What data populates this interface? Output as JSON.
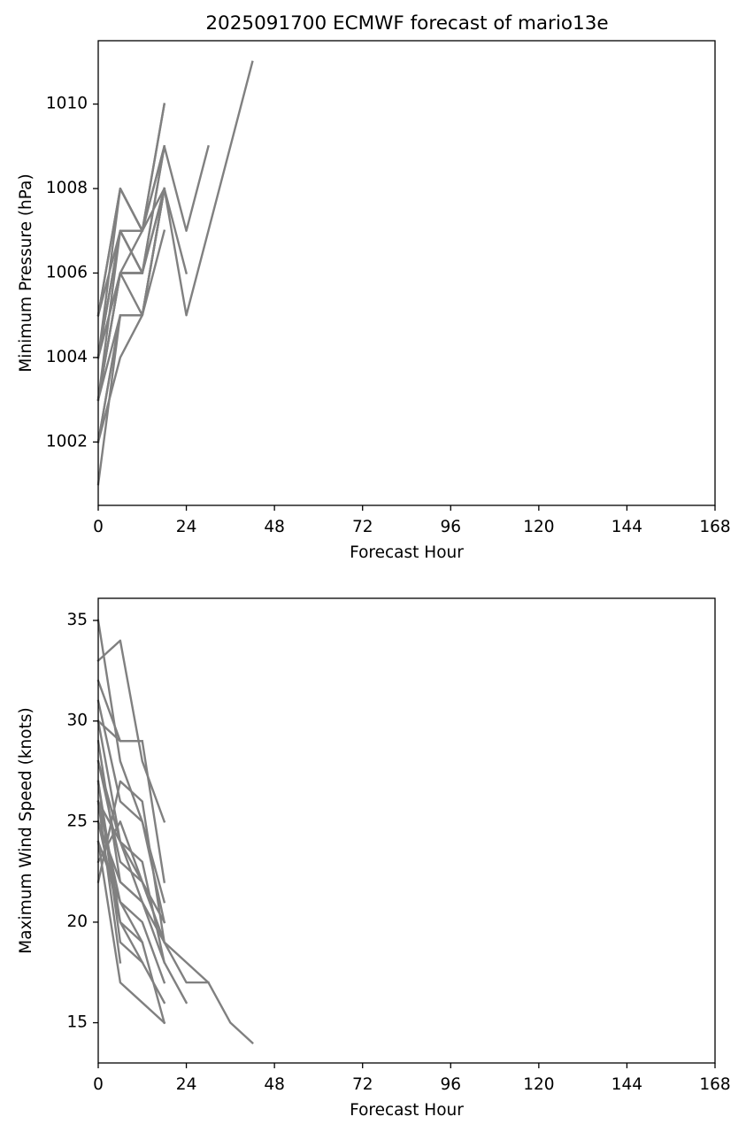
{
  "figure": {
    "title": "2025091700 ECMWF forecast of mario13e"
  },
  "chart_data": [
    {
      "type": "line",
      "title": "2025091700 ECMWF forecast of mario13e",
      "xlabel": "Forecast Hour",
      "ylabel": "Minimum Pressure (hPa)",
      "xlim": [
        0,
        168
      ],
      "ylim": [
        1000.5,
        1011.5
      ],
      "xticks": [
        0,
        24,
        48,
        72,
        96,
        120,
        144,
        168
      ],
      "yticks": [
        1002,
        1004,
        1006,
        1008,
        1010
      ],
      "grid": false,
      "legend": "none",
      "line_color": "#808080",
      "series": [
        {
          "x": [
            0,
            6,
            12,
            18,
            24,
            30,
            36,
            42
          ],
          "y": [
            1003,
            1005,
            1005,
            1008,
            1005,
            1007,
            1009,
            1011
          ]
        },
        {
          "x": [
            0,
            6,
            12,
            18,
            24,
            30
          ],
          "y": [
            1004,
            1007,
            1007,
            1009,
            1007,
            1009
          ]
        },
        {
          "x": [
            0,
            6,
            12,
            18,
            24
          ],
          "y": [
            1004,
            1007,
            1006,
            1008,
            1006
          ]
        },
        {
          "x": [
            0,
            6,
            12,
            18
          ],
          "y": [
            1005,
            1008,
            1007,
            1010
          ]
        },
        {
          "x": [
            0,
            6,
            12,
            18
          ],
          "y": [
            1003,
            1006,
            1006,
            1009
          ]
        },
        {
          "x": [
            0,
            6,
            12,
            18
          ],
          "y": [
            1002,
            1004,
            1005,
            1007
          ]
        },
        {
          "x": [
            0,
            6,
            12,
            18
          ],
          "y": [
            1004,
            1006,
            1006,
            1008
          ]
        },
        {
          "x": [
            0,
            6,
            12,
            18
          ],
          "y": [
            1001,
            1005,
            1005,
            1008
          ]
        },
        {
          "x": [
            0,
            6,
            12,
            18
          ],
          "y": [
            1005,
            1007,
            1007,
            1010
          ]
        },
        {
          "x": [
            0,
            6,
            12,
            18
          ],
          "y": [
            1003,
            1006,
            1005,
            1008
          ]
        },
        {
          "x": [
            0,
            6,
            12,
            18
          ],
          "y": [
            1004,
            1008,
            1007,
            1009
          ]
        },
        {
          "x": [
            0,
            6,
            12,
            18
          ],
          "y": [
            1003,
            1007,
            1006,
            1009
          ]
        },
        {
          "x": [
            0,
            6,
            12,
            18
          ],
          "y": [
            1002,
            1005,
            1005,
            1008
          ]
        },
        {
          "x": [
            0,
            6,
            12,
            18
          ],
          "y": [
            1004,
            1006,
            1007,
            1008
          ]
        },
        {
          "x": [
            0,
            6,
            12
          ],
          "y": [
            1005,
            1008,
            1007
          ]
        },
        {
          "x": [
            0,
            6,
            12
          ],
          "y": [
            1003,
            1006,
            1006
          ]
        },
        {
          "x": [
            0,
            6,
            12
          ],
          "y": [
            1004,
            1007,
            1006
          ]
        },
        {
          "x": [
            0,
            6
          ],
          "y": [
            1002,
            1005
          ]
        }
      ]
    },
    {
      "type": "line",
      "xlabel": "Forecast Hour",
      "ylabel": "Maximum Wind Speed (knots)",
      "xlim": [
        0,
        168
      ],
      "ylim": [
        13,
        36.1
      ],
      "xticks": [
        0,
        24,
        48,
        72,
        96,
        120,
        144,
        168
      ],
      "yticks": [
        15,
        20,
        25,
        30,
        35
      ],
      "grid": false,
      "legend": "none",
      "line_color": "#808080",
      "series": [
        {
          "x": [
            0,
            6,
            12,
            18,
            24,
            30,
            36,
            42
          ],
          "y": [
            22,
            27,
            26,
            19,
            18,
            17,
            15,
            14
          ]
        },
        {
          "x": [
            0,
            6,
            12,
            18,
            24,
            30
          ],
          "y": [
            25,
            22,
            21,
            19,
            17,
            17
          ]
        },
        {
          "x": [
            0,
            6,
            12,
            18,
            24
          ],
          "y": [
            26,
            24,
            23,
            18,
            16
          ]
        },
        {
          "x": [
            0,
            6,
            12,
            18
          ],
          "y": [
            33,
            34,
            28,
            25
          ]
        },
        {
          "x": [
            0,
            6,
            12
          ],
          "y": [
            32,
            29,
            29
          ]
        },
        {
          "x": [
            0,
            6,
            12,
            18
          ],
          "y": [
            30,
            29,
            29,
            22
          ]
        },
        {
          "x": [
            0,
            6,
            12,
            18
          ],
          "y": [
            35,
            28,
            25,
            20
          ]
        },
        {
          "x": [
            0,
            6,
            12,
            18
          ],
          "y": [
            28,
            24,
            22,
            19
          ]
        },
        {
          "x": [
            0,
            6,
            12,
            18
          ],
          "y": [
            27,
            20,
            19,
            15
          ]
        },
        {
          "x": [
            0,
            6,
            12,
            18
          ],
          "y": [
            29,
            22,
            21,
            18
          ]
        },
        {
          "x": [
            0,
            6,
            12,
            18
          ],
          "y": [
            26,
            21,
            20,
            17
          ]
        },
        {
          "x": [
            0,
            6,
            12,
            18
          ],
          "y": [
            24,
            17,
            16,
            15
          ]
        },
        {
          "x": [
            0,
            6,
            12,
            18
          ],
          "y": [
            31,
            26,
            25,
            21
          ]
        },
        {
          "x": [
            0,
            6,
            12,
            18
          ],
          "y": [
            25,
            20,
            18,
            16
          ]
        },
        {
          "x": [
            0,
            6,
            12,
            18
          ],
          "y": [
            23,
            25,
            22,
            20
          ]
        },
        {
          "x": [
            0,
            6,
            12,
            18
          ],
          "y": [
            28,
            23,
            22,
            19
          ]
        },
        {
          "x": [
            0,
            6,
            12
          ],
          "y": [
            27,
            19,
            18
          ]
        },
        {
          "x": [
            0,
            6,
            12
          ],
          "y": [
            24,
            21,
            19
          ]
        },
        {
          "x": [
            0,
            6,
            12
          ],
          "y": [
            30,
            24,
            21
          ]
        },
        {
          "x": [
            0,
            6
          ],
          "y": [
            26,
            18
          ]
        }
      ]
    }
  ]
}
